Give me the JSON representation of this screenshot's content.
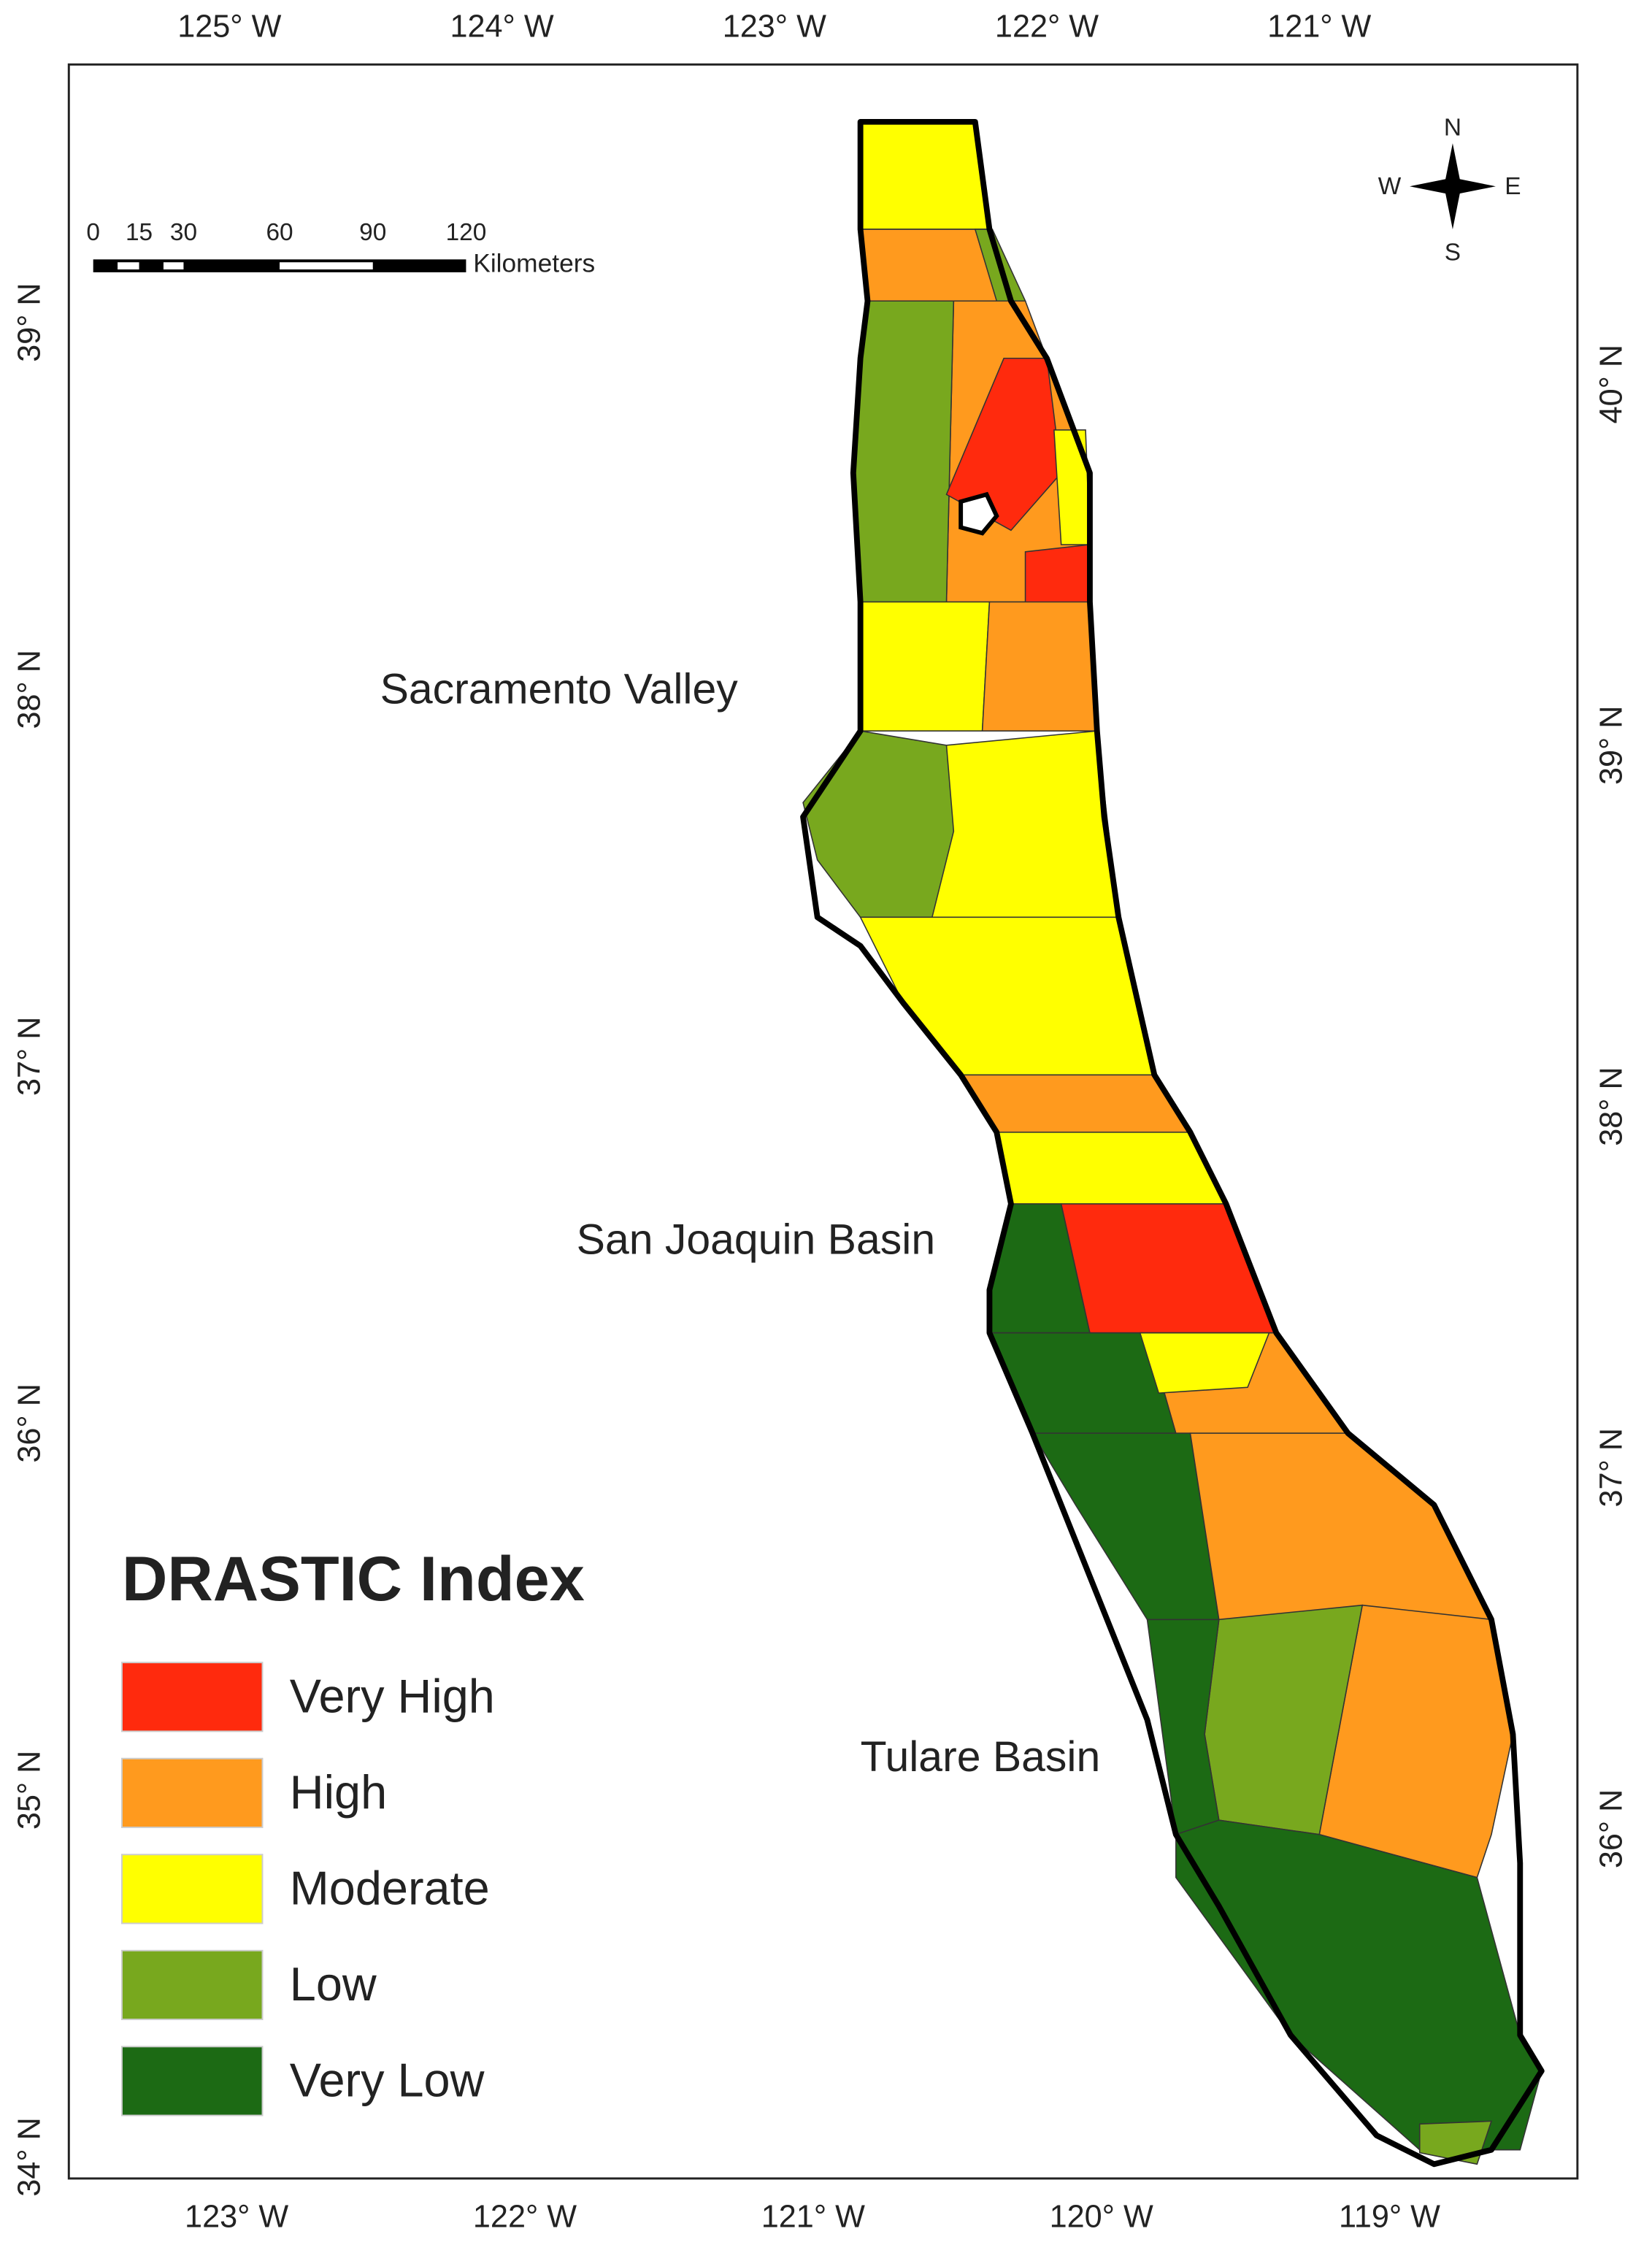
{
  "map": {
    "top_ticks": [
      "125° W",
      "124° W",
      "123° W",
      "122° W",
      "121° W"
    ],
    "bottom_ticks": [
      "123° W",
      "122° W",
      "121° W",
      "120° W",
      "119° W"
    ],
    "left_ticks": [
      "39° N",
      "38° N",
      "37° N",
      "36° N",
      "35° N",
      "34° N"
    ],
    "right_ticks": [
      "40° N",
      "39° N",
      "38° N",
      "37° N",
      "36° N"
    ],
    "scale_bar": {
      "labels": [
        "0",
        "15",
        "30",
        "60",
        "90",
        "120"
      ],
      "unit": "Kilometers"
    },
    "compass": {
      "n": "N",
      "s": "S",
      "e": "E",
      "w": "W"
    },
    "regions": [
      "Sacramento Valley",
      "San Joaquin Basin",
      "Tulare Basin"
    ],
    "legend": {
      "title": "DRASTIC Index",
      "items": [
        {
          "label": "Very High",
          "color": "#ff2a0d"
        },
        {
          "label": "High",
          "color": "#ff9a1e"
        },
        {
          "label": "Moderate",
          "color": "#ffff00"
        },
        {
          "label": "Low",
          "color": "#78a81e"
        },
        {
          "label": "Very Low",
          "color": "#1c6a14"
        }
      ]
    }
  }
}
